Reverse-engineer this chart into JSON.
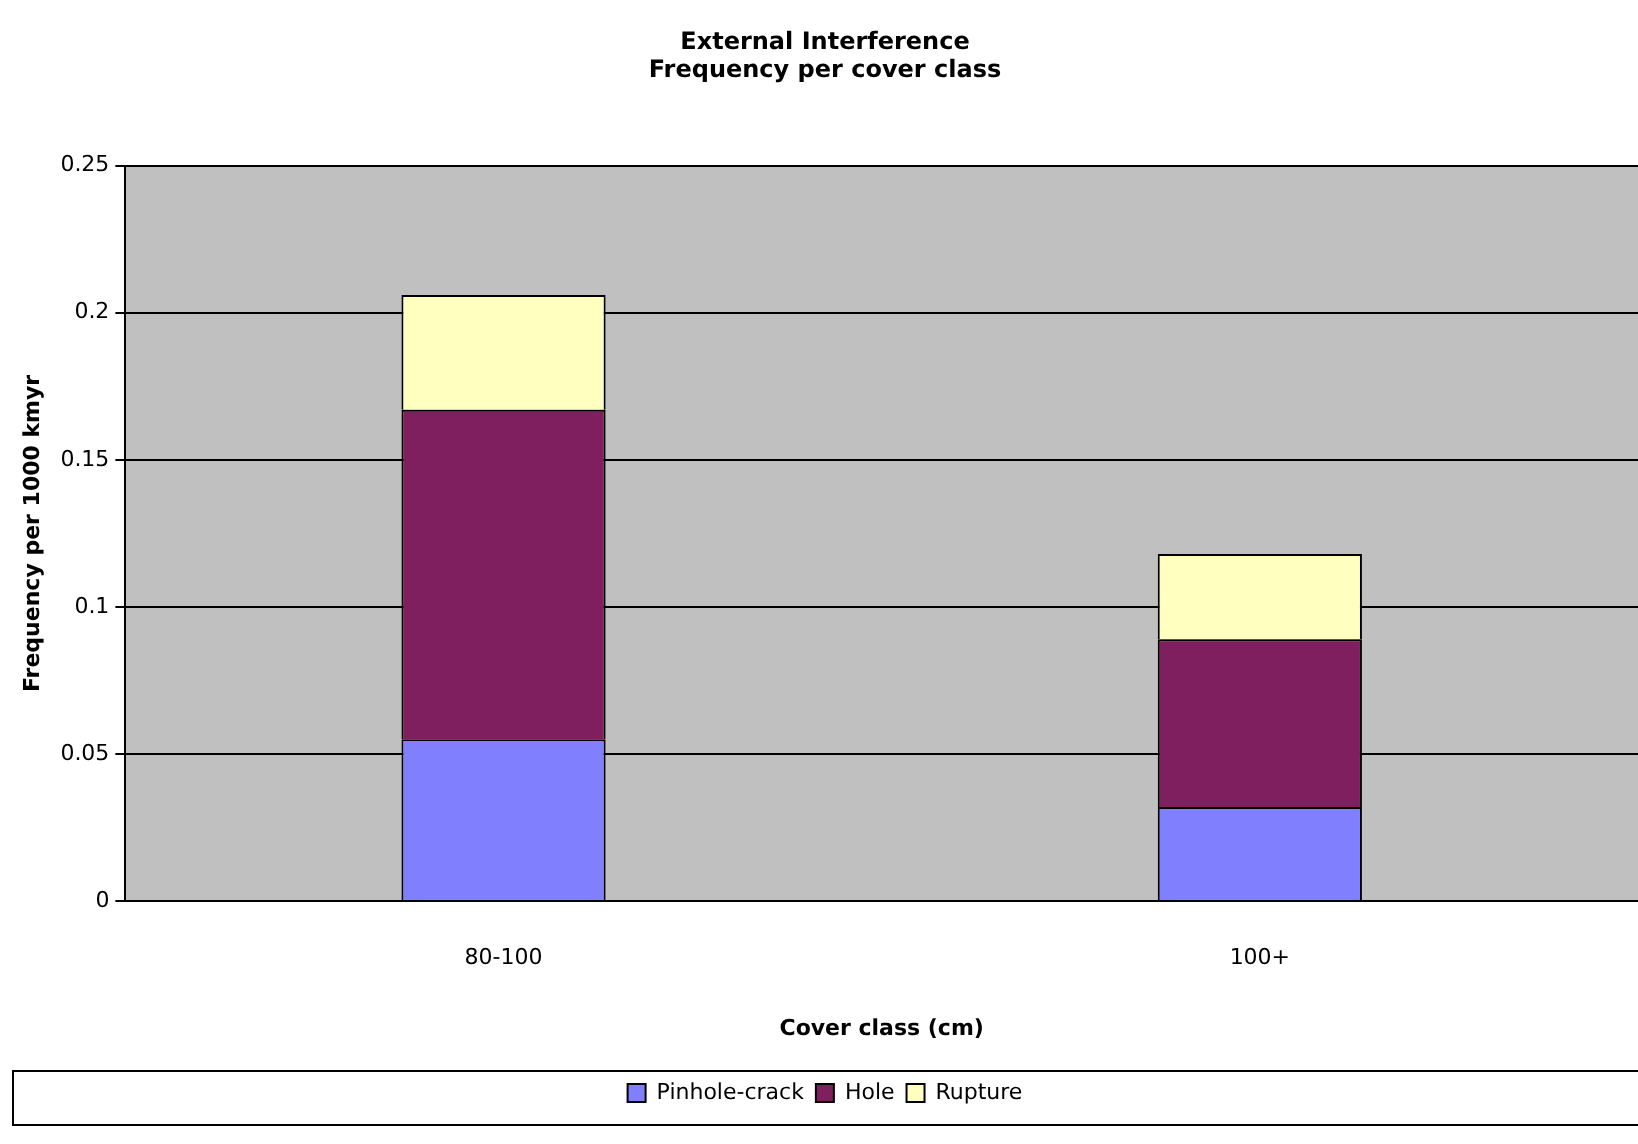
{
  "chart_data": {
    "type": "bar",
    "title": "External Interference\nFrequency per cover class",
    "xlabel": "Cover class (cm)",
    "ylabel": "Frequency per 1000 kmyr",
    "categories": [
      "80-100",
      "100+"
    ],
    "stacked": true,
    "series": [
      {
        "name": "Pinhole-crack",
        "color": "#8080ff",
        "values": [
          0.055,
          0.032
        ]
      },
      {
        "name": "Hole",
        "color": "#7f1f5f",
        "values": [
          0.112,
          0.057
        ]
      },
      {
        "name": "Rupture",
        "color": "#ffffc0",
        "values": [
          0.039,
          0.029
        ]
      }
    ],
    "ylim": [
      0,
      0.25
    ],
    "yticks": [
      0,
      0.05,
      0.1,
      0.15,
      0.2,
      0.25
    ],
    "grid": "y",
    "legend": "bottom"
  }
}
